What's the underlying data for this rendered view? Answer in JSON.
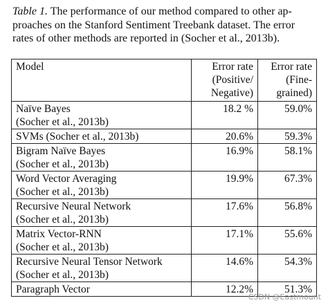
{
  "caption": {
    "label": "Table 1.",
    "lines": [
      " The performance of our method compared to other ap-",
      "proaches on the Stanford Sentiment Treebank dataset.  The error",
      "rates of other methods are reported in (Socher et al., 2013b)."
    ]
  },
  "table": {
    "headers": {
      "model": "Model",
      "col1": [
        "Error rate",
        "(Positive/",
        "Negative)"
      ],
      "col2": [
        "Error rate",
        "(Fine-",
        "grained)"
      ]
    },
    "rows": [
      {
        "name": [
          "Naïve Bayes",
          "(Socher et al., 2013b)"
        ],
        "binary": "18.2 %",
        "fine": "59.0%"
      },
      {
        "name": [
          "SVMs (Socher et al., 2013b)"
        ],
        "binary": "20.6%",
        "fine": "59.3%"
      },
      {
        "name": [
          "Bigram Naïve Bayes",
          "(Socher et al., 2013b)"
        ],
        "binary": "16.9%",
        "fine": "58.1%"
      },
      {
        "name": [
          "Word Vector Averaging",
          "(Socher et al., 2013b)"
        ],
        "binary": "19.9%",
        "fine": "67.3%"
      },
      {
        "name": [
          "Recursive Neural Network",
          "(Socher et al., 2013b)"
        ],
        "binary": "17.6%",
        "fine": "56.8%"
      },
      {
        "name": [
          "Matrix Vector-RNN",
          "(Socher et al., 2013b)"
        ],
        "binary": "17.1%",
        "fine": "55.6%"
      },
      {
        "name": [
          "Recursive Neural Tensor Network",
          "(Socher et al., 2013b)"
        ],
        "binary": "14.6%",
        "fine": "54.3%"
      },
      {
        "name": [
          "Paragraph Vector"
        ],
        "binary": "12.2%",
        "fine": "51.3%",
        "best": true
      }
    ]
  },
  "watermark": "CSDN @Eastmount"
}
